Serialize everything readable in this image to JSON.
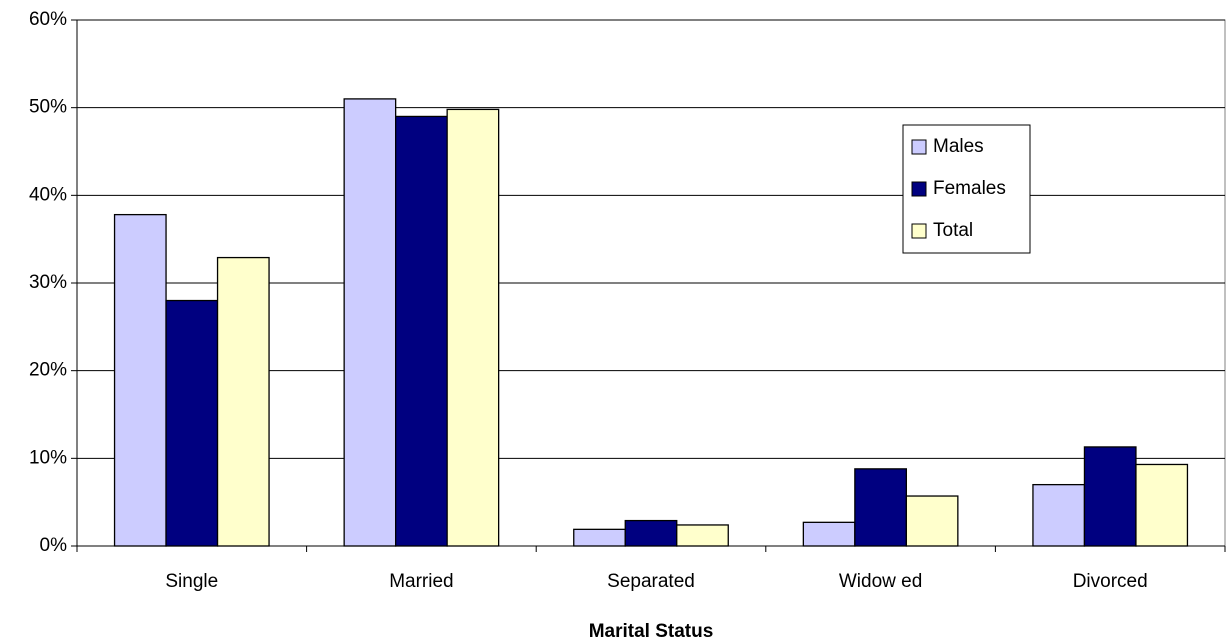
{
  "chart_data": {
    "type": "bar",
    "x_label": "Marital Status",
    "categories": [
      "Single",
      "Married",
      "Separated",
      "Widow ed",
      "Divorced"
    ],
    "series": [
      {
        "name": "Males",
        "color": "#ccccff",
        "values": [
          37.8,
          51,
          1.9,
          2.7,
          7
        ]
      },
      {
        "name": "Females",
        "color": "#000080",
        "values": [
          28,
          49,
          2.9,
          8.8,
          11.3
        ]
      },
      {
        "name": "Total",
        "color": "#ffffcc",
        "values": [
          32.9,
          49.8,
          2.4,
          5.7,
          9.3
        ]
      }
    ],
    "ylim": [
      0,
      60
    ],
    "yticks": [
      {
        "value": 0,
        "label": "0%"
      },
      {
        "value": 10,
        "label": "10%"
      },
      {
        "value": 20,
        "label": "20%"
      },
      {
        "value": 30,
        "label": "30%"
      },
      {
        "value": 40,
        "label": "40%"
      },
      {
        "value": 50,
        "label": "50%"
      },
      {
        "value": 60,
        "label": "60%"
      }
    ],
    "grid": true,
    "legend": "right"
  }
}
